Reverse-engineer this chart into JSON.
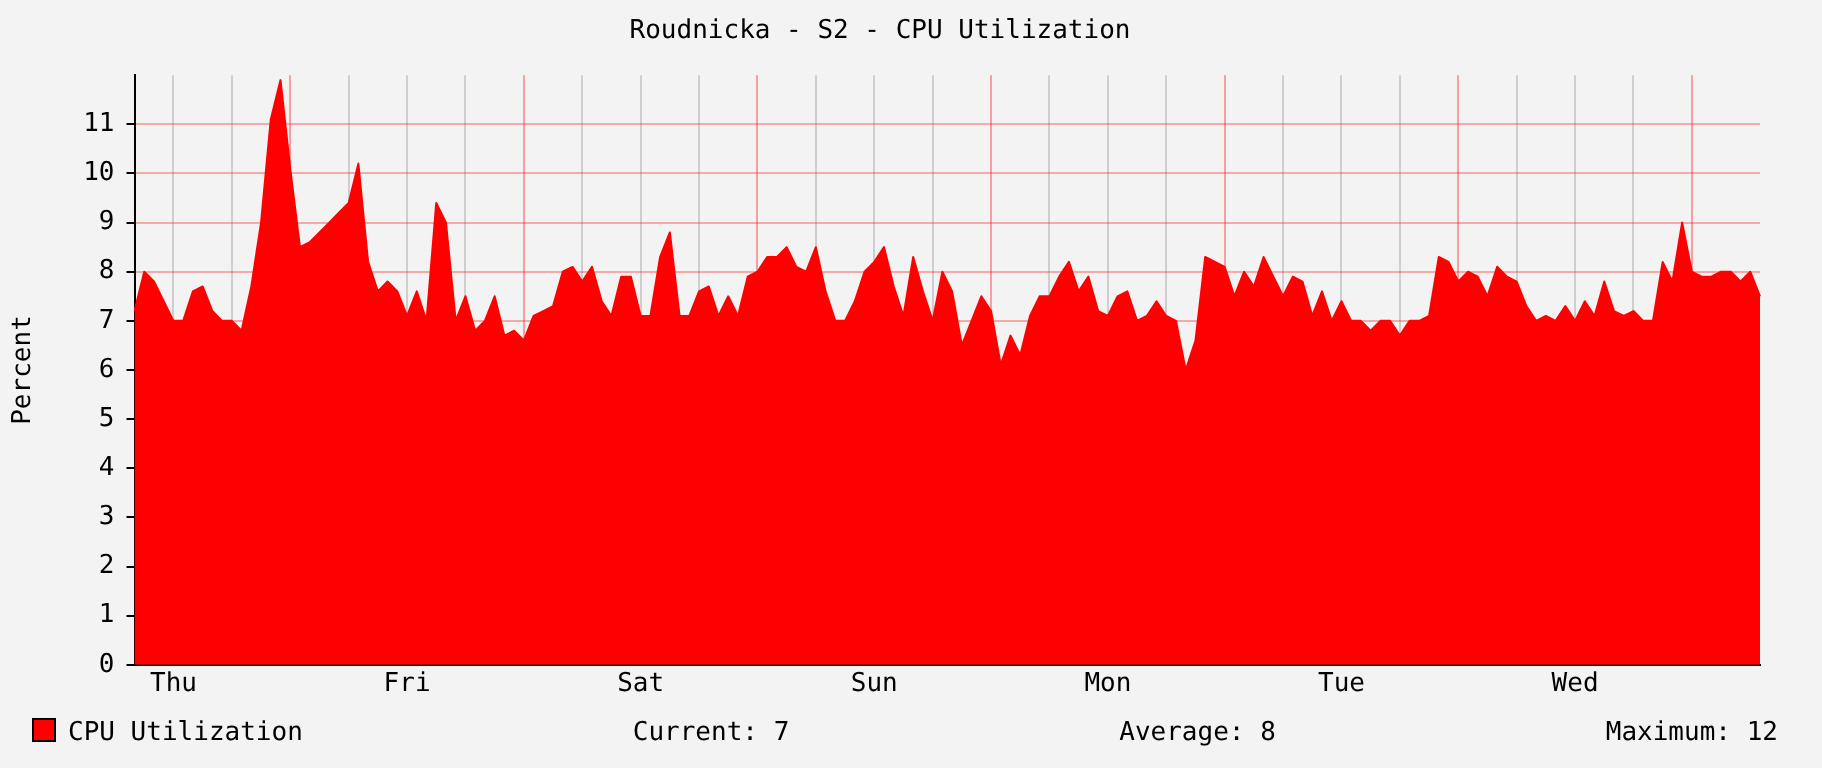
{
  "chart_data": {
    "type": "area",
    "title": "Roudnicka - S2 - CPU Utilization",
    "ylabel": "Percent",
    "ylim": [
      0,
      12
    ],
    "yticks": [
      0,
      1,
      2,
      3,
      4,
      5,
      6,
      7,
      8,
      9,
      10,
      11
    ],
    "grid": true,
    "legend": "bottom",
    "marker": "none",
    "annotations": [
      "Current: 7",
      "Average: 8",
      "Maximum: 12"
    ],
    "categories": [
      null,
      null,
      null,
      null,
      "Thu",
      null,
      null,
      null,
      null,
      null,
      null,
      null,
      null,
      null,
      null,
      null,
      null,
      null,
      null,
      null,
      null,
      null,
      null,
      null,
      null,
      null,
      null,
      null,
      "Fri",
      null,
      null,
      null,
      null,
      null,
      null,
      null,
      null,
      null,
      null,
      null,
      null,
      null,
      null,
      null,
      null,
      null,
      null,
      null,
      null,
      null,
      null,
      null,
      "Sat",
      null,
      null,
      null,
      null,
      null,
      null,
      null,
      null,
      null,
      null,
      null,
      null,
      null,
      null,
      null,
      null,
      null,
      null,
      null,
      null,
      null,
      null,
      null,
      "Sun",
      null,
      null,
      null,
      null,
      null,
      null,
      null,
      null,
      null,
      null,
      null,
      null,
      null,
      null,
      null,
      null,
      null,
      null,
      null,
      null,
      null,
      null,
      null,
      "Mon",
      null,
      null,
      null,
      null,
      null,
      null,
      null,
      null,
      null,
      null,
      null,
      null,
      null,
      null,
      null,
      null,
      null,
      null,
      null,
      null,
      null,
      null,
      null,
      "Tue",
      null,
      null,
      null,
      null,
      null,
      null,
      null,
      null,
      null,
      null,
      null,
      null,
      null,
      null,
      null,
      null,
      null,
      null,
      null,
      null,
      null,
      null,
      null,
      "Wed",
      null,
      null,
      null,
      null,
      null,
      null,
      null,
      null,
      null,
      null,
      null,
      null,
      null,
      null,
      null,
      null,
      null,
      null,
      null
    ],
    "series": [
      {
        "name": "CPU Utilization",
        "color": "#ff0000",
        "values": [
          7.2,
          8.0,
          7.8,
          7.4,
          7.0,
          7.0,
          7.6,
          7.7,
          7.2,
          7.0,
          7.0,
          6.8,
          7.7,
          9.0,
          11.1,
          11.9,
          10.1,
          8.5,
          8.6,
          8.8,
          9.0,
          9.2,
          9.4,
          10.2,
          8.2,
          7.6,
          7.8,
          7.6,
          7.1,
          7.6,
          7.0,
          9.4,
          9.0,
          7.0,
          7.5,
          6.8,
          7.0,
          7.5,
          6.7,
          6.8,
          6.6,
          7.1,
          7.2,
          7.3,
          8.0,
          8.1,
          7.8,
          8.1,
          7.4,
          7.1,
          7.9,
          7.9,
          7.1,
          7.1,
          8.3,
          8.8,
          7.1,
          7.1,
          7.6,
          7.7,
          7.1,
          7.5,
          7.1,
          7.9,
          8.0,
          8.3,
          8.3,
          8.5,
          8.1,
          8.0,
          8.5,
          7.6,
          7.0,
          7.0,
          7.4,
          8.0,
          8.2,
          8.5,
          7.7,
          7.1,
          8.3,
          7.6,
          7.0,
          8.0,
          7.6,
          6.5,
          7.0,
          7.5,
          7.2,
          6.1,
          6.7,
          6.3,
          7.1,
          7.5,
          7.5,
          7.9,
          8.2,
          7.6,
          7.9,
          7.2,
          7.1,
          7.5,
          7.6,
          7.0,
          7.1,
          7.4,
          7.1,
          7.0,
          6.0,
          6.6,
          8.3,
          8.2,
          8.1,
          7.5,
          8.0,
          7.7,
          8.3,
          7.9,
          7.5,
          7.9,
          7.8,
          7.1,
          7.6,
          7.0,
          7.4,
          7.0,
          7.0,
          6.8,
          7.0,
          7.0,
          6.7,
          7.0,
          7.0,
          7.1,
          8.3,
          8.2,
          7.8,
          8.0,
          7.9,
          7.5,
          8.1,
          7.9,
          7.8,
          7.3,
          7.0,
          7.1,
          7.0,
          7.3,
          7.0,
          7.4,
          7.1,
          7.8,
          7.2,
          7.1,
          7.2,
          7.0,
          7.0,
          8.2,
          7.8,
          9.0,
          8.0,
          7.9,
          7.9,
          8.0,
          8.0,
          7.8,
          8.0,
          7.5
        ]
      }
    ]
  }
}
